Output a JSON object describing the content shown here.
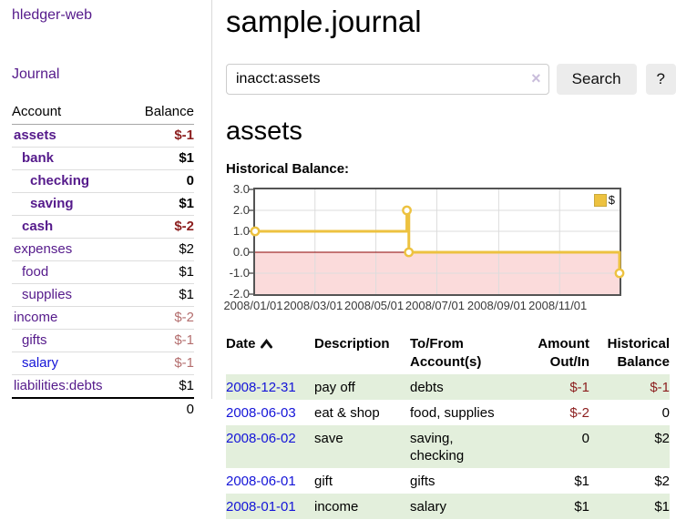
{
  "app": {
    "brand": "hledger-web"
  },
  "sidebar": {
    "nav": {
      "journal": "Journal"
    },
    "accounts_table": {
      "headers": {
        "account": "Account",
        "balance": "Balance"
      },
      "rows": [
        {
          "name": "assets",
          "balance": "$-1",
          "depth": 0
        },
        {
          "name": "bank",
          "balance": "$1",
          "depth": 1
        },
        {
          "name": "checking",
          "balance": "0",
          "depth": 2
        },
        {
          "name": "saving",
          "balance": "$1",
          "depth": 2
        },
        {
          "name": "cash",
          "balance": "$-2",
          "depth": 1
        },
        {
          "name": "expenses",
          "balance": "$2",
          "depth": 0
        },
        {
          "name": "food",
          "balance": "$1",
          "depth": 1
        },
        {
          "name": "supplies",
          "balance": "$1",
          "depth": 1
        },
        {
          "name": "income",
          "balance": "$-2",
          "depth": 0
        },
        {
          "name": "gifts",
          "balance": "$-1",
          "depth": 1
        },
        {
          "name": "salary",
          "balance": "$-1",
          "depth": 1
        },
        {
          "name": "liabilities:debts",
          "balance": "$1",
          "depth": 0
        }
      ],
      "total": "0"
    }
  },
  "header": {
    "title": "sample.journal"
  },
  "search": {
    "value": "inacct:assets",
    "clear_label": "×",
    "button": "Search",
    "help_button": "?"
  },
  "account_page": {
    "title": "assets",
    "chart_label": "Historical Balance:"
  },
  "chart_data": {
    "type": "line",
    "title": "Historical Balance",
    "step": true,
    "series": [
      {
        "name": "$",
        "color": "#edc240",
        "points": [
          [
            "2008-01-01",
            1
          ],
          [
            "2008-06-01",
            2
          ],
          [
            "2008-06-03",
            0
          ],
          [
            "2008-12-31",
            -1
          ]
        ]
      }
    ],
    "x_range": [
      "2008-01-01",
      "2008-12-31"
    ],
    "ylim": [
      -2,
      3
    ],
    "yticks": [
      "3.0",
      "2.0",
      "1.0",
      "0.0",
      "-1.0",
      "-2.0"
    ],
    "xticks": [
      "2008/01/01",
      "2008/03/01",
      "2008/05/01",
      "2008/07/01",
      "2008/09/01",
      "2008/11/01"
    ],
    "grid": true,
    "negative_region": {
      "below": 0,
      "fill": "#fbdbdb",
      "line_color": "#8b0000"
    },
    "legend": {
      "label": "$",
      "position": "top-right"
    }
  },
  "register_table": {
    "headers": {
      "date": "Date",
      "description": "Description",
      "accounts": "To/From Account(s)",
      "amount": "Amount Out/In",
      "balance": "Historical Balance"
    },
    "sort": {
      "column": "date",
      "direction": "ascending"
    },
    "rows": [
      {
        "date": "2008-12-31",
        "description": "pay off",
        "accounts": "debts",
        "amount": "$-1",
        "balance": "$-1"
      },
      {
        "date": "2008-06-03",
        "description": "eat & shop",
        "accounts": "food, supplies",
        "amount": "$-2",
        "balance": "0"
      },
      {
        "date": "2008-06-02",
        "description": "save",
        "accounts": "saving, checking",
        "amount": "0",
        "balance": "$2"
      },
      {
        "date": "2008-06-01",
        "description": "gift",
        "accounts": "gifts",
        "amount": "$1",
        "balance": "$2"
      },
      {
        "date": "2008-01-01",
        "description": "income",
        "accounts": "salary",
        "amount": "$1",
        "balance": "$1"
      }
    ]
  },
  "colors": {
    "link_purple": "#551a8b",
    "link_blue": "#1414d8",
    "negative_strong": "#8c1e1e",
    "negative_soft": "#b46e6e",
    "row_stripe_green": "#e3efdc",
    "chart_line_gold": "#edc240",
    "chart_negative_pink": "#fbdbdb",
    "chart_zero_line_red": "#8b0000",
    "chart_border_gray": "#545454"
  }
}
